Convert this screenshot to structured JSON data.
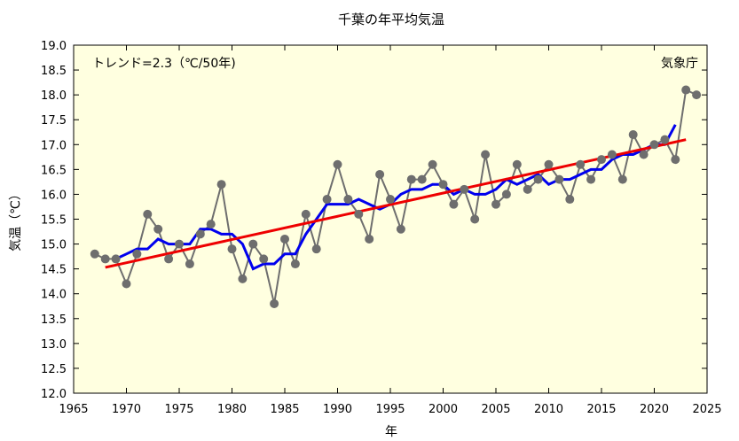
{
  "chart_data": {
    "type": "line",
    "title": "千葉の年平均気温",
    "xlabel": "年",
    "ylabel": "気温（℃）",
    "trend_label": "トレンド=2.3（℃/50年)",
    "source_label": "気象庁",
    "xlim": [
      1965,
      2025
    ],
    "ylim": [
      12.0,
      19.0
    ],
    "xticks": [
      1965,
      1970,
      1975,
      1980,
      1985,
      1990,
      1995,
      2000,
      2005,
      2010,
      2015,
      2020,
      2025
    ],
    "yticks": [
      "12.0",
      "12.5",
      "13.0",
      "13.5",
      "14.0",
      "14.5",
      "15.0",
      "15.5",
      "16.0",
      "16.5",
      "17.0",
      "17.5",
      "18.0",
      "18.5",
      "19.0"
    ],
    "grid": false,
    "background": "#ffffe0",
    "colors": {
      "annual": "#6e6e6e",
      "moving_average": "#0000ee",
      "trend": "#ee0000"
    },
    "series": [
      {
        "type": "line+markers",
        "x": [
          1967,
          1968,
          1969,
          1970,
          1971,
          1972,
          1973,
          1974,
          1975,
          1976,
          1977,
          1978,
          1979,
          1980,
          1981,
          1982,
          1983,
          1984,
          1985,
          1986,
          1987,
          1988,
          1989,
          1990,
          1991,
          1992,
          1993,
          1994,
          1995,
          1996,
          1997,
          1998,
          1999,
          2000,
          2001,
          2002,
          2003,
          2004,
          2005,
          2006,
          2007,
          2008,
          2009,
          2010,
          2011,
          2012,
          2013,
          2014,
          2015,
          2016,
          2017,
          2018,
          2019,
          2020,
          2021,
          2022,
          2023,
          2024
        ],
        "values": [
          14.8,
          14.7,
          14.7,
          14.2,
          14.8,
          15.6,
          15.3,
          14.7,
          15.0,
          14.6,
          15.2,
          15.4,
          16.2,
          14.9,
          14.3,
          15.0,
          14.7,
          13.8,
          15.1,
          14.6,
          15.6,
          14.9,
          15.9,
          16.6,
          15.9,
          15.6,
          15.1,
          16.4,
          15.9,
          15.3,
          16.3,
          16.3,
          16.6,
          16.2,
          15.8,
          16.1,
          15.5,
          16.8,
          15.8,
          16.0,
          16.6,
          16.1,
          16.3,
          16.6,
          16.3,
          15.9,
          16.6,
          16.3,
          16.7,
          16.8,
          16.3,
          17.2,
          16.8,
          17.0,
          17.1,
          16.7,
          18.1,
          18.0
        ]
      },
      {
        "type": "line",
        "x": [
          1969,
          1970,
          1971,
          1972,
          1973,
          1974,
          1975,
          1976,
          1977,
          1978,
          1979,
          1980,
          1981,
          1982,
          1983,
          1984,
          1985,
          1986,
          1987,
          1988,
          1989,
          1990,
          1991,
          1992,
          1993,
          1994,
          1995,
          1996,
          1997,
          1998,
          1999,
          2000,
          2001,
          2002,
          2003,
          2004,
          2005,
          2006,
          2007,
          2008,
          2009,
          2010,
          2011,
          2012,
          2013,
          2014,
          2015,
          2016,
          2017,
          2018,
          2019,
          2020,
          2021,
          2022
        ],
        "values": [
          14.7,
          14.8,
          14.9,
          14.9,
          15.1,
          15.0,
          15.0,
          15.0,
          15.3,
          15.3,
          15.2,
          15.2,
          15.0,
          14.5,
          14.6,
          14.6,
          14.8,
          14.8,
          15.2,
          15.5,
          15.8,
          15.8,
          15.8,
          15.9,
          15.8,
          15.7,
          15.8,
          16.0,
          16.1,
          16.1,
          16.2,
          16.2,
          16.0,
          16.1,
          16.0,
          16.0,
          16.1,
          16.3,
          16.2,
          16.3,
          16.4,
          16.2,
          16.3,
          16.3,
          16.4,
          16.5,
          16.5,
          16.7,
          16.8,
          16.8,
          16.9,
          17.0,
          17.0,
          17.4
        ]
      },
      {
        "type": "trend",
        "x": [
          1968,
          2023
        ],
        "values": [
          14.53,
          17.1
        ]
      }
    ]
  }
}
